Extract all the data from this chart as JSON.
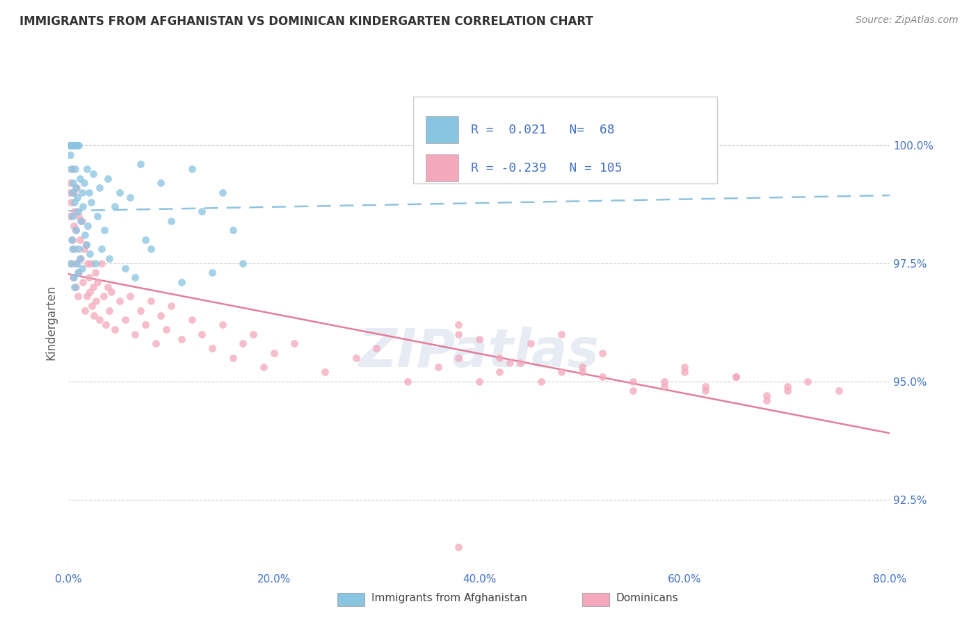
{
  "title": "IMMIGRANTS FROM AFGHANISTAN VS DOMINICAN KINDERGARTEN CORRELATION CHART",
  "source_text": "Source: ZipAtlas.com",
  "ylabel": "Kindergarten",
  "watermark": "ZIPatlas",
  "blue_color": "#89c4e1",
  "pink_color": "#f4a8bc",
  "trend_blue_color": "#7ab8d9",
  "trend_pink_color": "#e07090",
  "axis_color": "#4472c4",
  "title_color": "#333333",
  "xlim": [
    0.0,
    80.0
  ],
  "ylim": [
    91.0,
    101.5
  ],
  "yticks": [
    92.5,
    95.0,
    97.5,
    100.0
  ],
  "xticks": [
    0.0,
    20.0,
    40.0,
    60.0,
    80.0
  ],
  "blue_x": [
    0.1,
    0.15,
    0.2,
    0.2,
    0.25,
    0.3,
    0.3,
    0.35,
    0.35,
    0.4,
    0.4,
    0.45,
    0.5,
    0.5,
    0.55,
    0.6,
    0.6,
    0.65,
    0.7,
    0.7,
    0.75,
    0.8,
    0.85,
    0.9,
    0.9,
    0.95,
    1.0,
    1.0,
    1.1,
    1.1,
    1.2,
    1.3,
    1.3,
    1.4,
    1.5,
    1.6,
    1.7,
    1.8,
    1.9,
    2.0,
    2.1,
    2.2,
    2.4,
    2.6,
    2.8,
    3.0,
    3.2,
    3.5,
    3.8,
    4.0,
    4.5,
    5.0,
    5.5,
    6.0,
    6.5,
    7.0,
    7.5,
    8.0,
    9.0,
    10.0,
    11.0,
    12.0,
    13.0,
    14.0,
    15.0,
    16.0,
    17.0,
    62.0
  ],
  "blue_y": [
    100.0,
    99.8,
    100.0,
    97.5,
    99.5,
    100.0,
    98.0,
    99.0,
    97.8,
    100.0,
    98.5,
    99.2,
    100.0,
    97.2,
    98.8,
    100.0,
    97.0,
    99.5,
    100.0,
    98.2,
    99.1,
    97.5,
    98.9,
    100.0,
    97.3,
    98.6,
    100.0,
    97.8,
    99.3,
    97.6,
    98.4,
    99.0,
    97.4,
    98.7,
    99.2,
    98.1,
    97.9,
    99.5,
    98.3,
    99.0,
    97.7,
    98.8,
    99.4,
    97.5,
    98.5,
    99.1,
    97.8,
    98.2,
    99.3,
    97.6,
    98.7,
    99.0,
    97.4,
    98.9,
    97.2,
    99.6,
    98.0,
    97.8,
    99.2,
    98.4,
    97.1,
    99.5,
    98.6,
    97.3,
    99.0,
    98.2,
    97.5,
    100.0
  ],
  "pink_x": [
    0.1,
    0.15,
    0.2,
    0.25,
    0.3,
    0.35,
    0.4,
    0.45,
    0.5,
    0.5,
    0.6,
    0.6,
    0.7,
    0.7,
    0.8,
    0.8,
    0.9,
    1.0,
    1.0,
    1.1,
    1.2,
    1.3,
    1.4,
    1.5,
    1.6,
    1.7,
    1.8,
    1.9,
    2.0,
    2.1,
    2.2,
    2.3,
    2.4,
    2.5,
    2.6,
    2.7,
    2.8,
    3.0,
    3.2,
    3.4,
    3.6,
    3.8,
    4.0,
    4.2,
    4.5,
    5.0,
    5.5,
    6.0,
    6.5,
    7.0,
    7.5,
    8.0,
    8.5,
    9.0,
    9.5,
    10.0,
    11.0,
    12.0,
    13.0,
    14.0,
    15.0,
    16.0,
    17.0,
    18.0,
    19.0,
    20.0,
    22.0,
    25.0,
    28.0,
    30.0,
    33.0,
    36.0,
    38.0,
    40.0,
    42.0,
    44.0,
    46.0,
    48.0,
    50.0,
    52.0,
    55.0,
    58.0,
    60.0,
    62.0,
    65.0,
    68.0,
    70.0,
    72.0,
    75.0,
    38.0,
    42.0,
    45.0,
    48.0,
    50.0,
    52.0,
    55.0,
    58.0,
    60.0,
    62.0,
    65.0,
    68.0,
    70.0,
    38.0,
    40.0,
    43.0
  ],
  "pink_y": [
    99.0,
    98.5,
    99.2,
    98.8,
    97.5,
    99.5,
    98.0,
    97.2,
    99.0,
    98.3,
    97.8,
    98.6,
    97.0,
    98.2,
    97.5,
    99.1,
    96.8,
    98.5,
    97.3,
    98.0,
    97.6,
    98.4,
    97.1,
    97.8,
    96.5,
    97.9,
    96.8,
    97.5,
    97.2,
    96.9,
    97.5,
    96.6,
    97.0,
    96.4,
    97.3,
    96.7,
    97.1,
    96.3,
    97.5,
    96.8,
    96.2,
    97.0,
    96.5,
    96.9,
    96.1,
    96.7,
    96.3,
    96.8,
    96.0,
    96.5,
    96.2,
    96.7,
    95.8,
    96.4,
    96.1,
    96.6,
    95.9,
    96.3,
    96.0,
    95.7,
    96.2,
    95.5,
    95.8,
    96.0,
    95.3,
    95.6,
    95.8,
    95.2,
    95.5,
    95.7,
    95.0,
    95.3,
    95.5,
    95.0,
    95.2,
    95.4,
    95.0,
    95.2,
    95.3,
    95.1,
    94.8,
    95.0,
    95.2,
    94.9,
    95.1,
    94.7,
    94.9,
    95.0,
    94.8,
    96.0,
    95.5,
    95.8,
    96.0,
    95.2,
    95.6,
    95.0,
    94.9,
    95.3,
    94.8,
    95.1,
    94.6,
    94.8,
    96.2,
    95.9,
    95.4
  ],
  "pink_outlier_x": [
    38.0
  ],
  "pink_outlier_y": [
    91.5
  ]
}
